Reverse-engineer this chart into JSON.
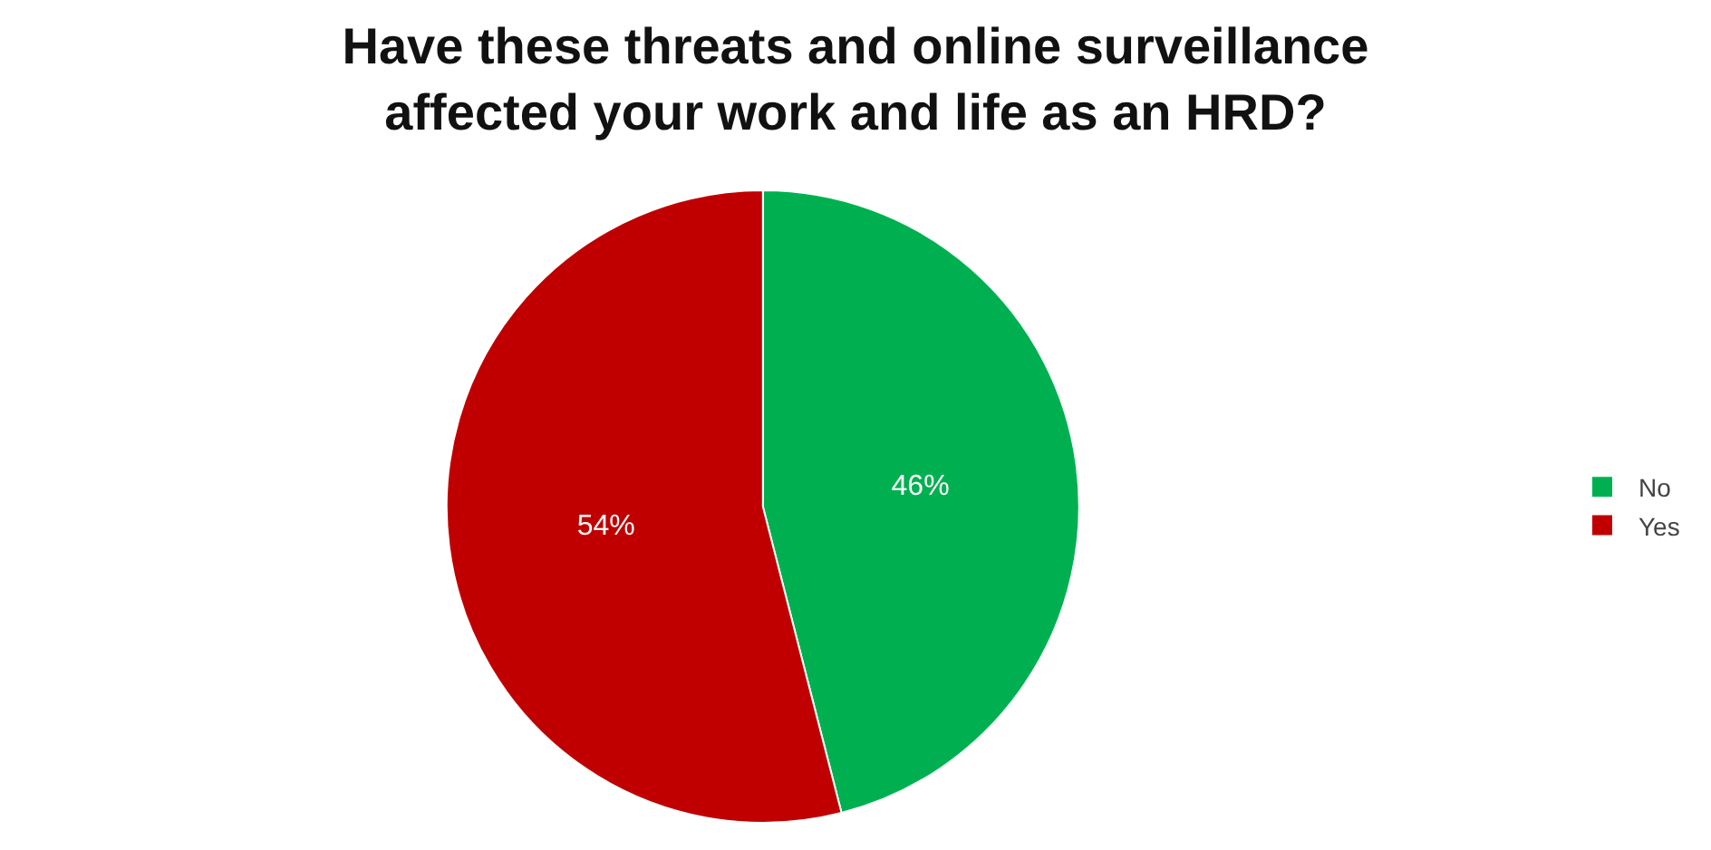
{
  "chart_data": {
    "type": "pie",
    "title": "Have these threats and online surveillance\naffected your work and life as an HRD?",
    "categories": [
      "No",
      "Yes"
    ],
    "values": [
      46,
      54
    ],
    "colors": [
      "#00b050",
      "#c00000"
    ],
    "value_labels": [
      "46%",
      "54%"
    ],
    "legend": "right"
  }
}
